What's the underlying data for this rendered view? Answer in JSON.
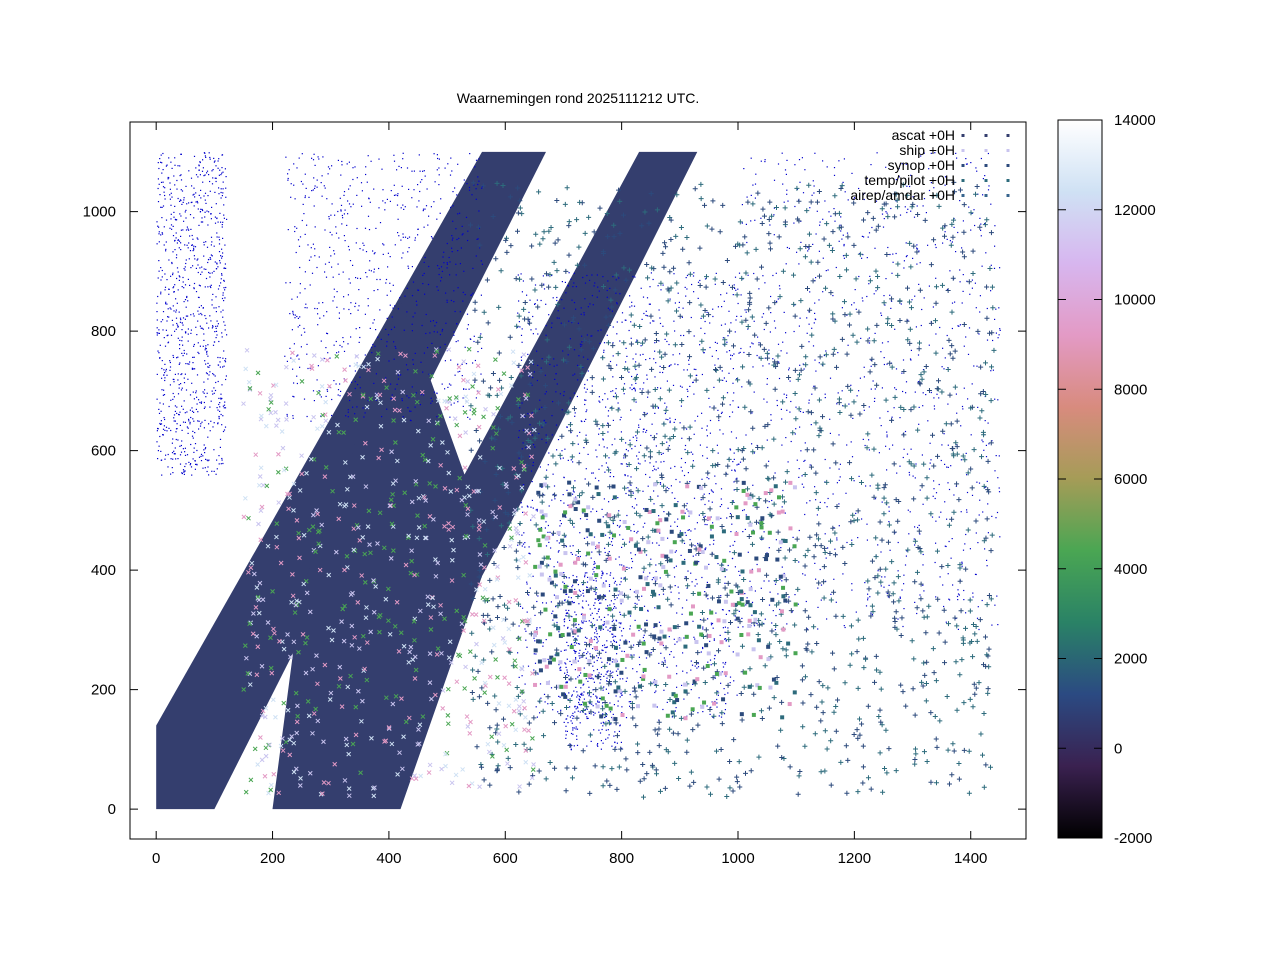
{
  "chart_data": {
    "type": "scatter",
    "title": "Waarnemingen rond 2025111212 UTC.",
    "xlim": [
      -45,
      1495
    ],
    "ylim": [
      -50,
      1150
    ],
    "x_ticks": [
      0,
      200,
      400,
      600,
      800,
      1000,
      1200,
      1400
    ],
    "y_ticks": [
      0,
      200,
      400,
      600,
      800,
      1000
    ],
    "legend": {
      "position": "top-right",
      "entries": [
        {
          "label": "ascat +0H",
          "marker": "dot"
        },
        {
          "label": "ship +0H",
          "marker": "cross"
        },
        {
          "label": "synop +0H",
          "marker": "square"
        },
        {
          "label": "temp/pilot +0H",
          "marker": "plus"
        },
        {
          "label": "airep/amdar +0H",
          "marker": "filled-square"
        }
      ]
    },
    "colorbar": {
      "min": -2000,
      "max": 14000,
      "ticks": [
        14000,
        12000,
        10000,
        8000,
        6000,
        4000,
        2000,
        0,
        -2000
      ],
      "colors": [
        "#000000",
        "#3a2150",
        "#2b4a82",
        "#2a8266",
        "#4aa653",
        "#a59c57",
        "#d88b7e",
        "#e39ac5",
        "#d7b6ef",
        "#cfe1f4",
        "#ffffff"
      ]
    },
    "ascat_swaths": [
      {
        "polygon": [
          [
            0,
            0
          ],
          [
            100,
            0
          ],
          [
            670,
            1100
          ],
          [
            560,
            1100
          ],
          [
            0,
            140
          ]
        ]
      },
      {
        "polygon": [
          [
            200,
            0
          ],
          [
            420,
            0
          ],
          [
            560,
            390
          ],
          [
            610,
            480
          ],
          [
            930,
            1100
          ],
          [
            830,
            1100
          ],
          [
            530,
            560
          ],
          [
            460,
            750
          ],
          [
            420,
            850
          ],
          [
            360,
            700
          ],
          [
            330,
            560
          ],
          [
            250,
            370
          ]
        ]
      }
    ],
    "series": [
      {
        "name": "ascat +0H",
        "description_color": "#343e6e"
      },
      {
        "name": "ship +0H",
        "description_color": "#c9c4ef"
      },
      {
        "name": "synop +0H",
        "description_color": "#2c4a7c"
      },
      {
        "name": "temp/pilot +0H",
        "description_color": "#2d6b7c"
      },
      {
        "name": "airep/amdar +0H",
        "description_color": "#37658e"
      }
    ],
    "coastline_color": "#0000cc"
  }
}
